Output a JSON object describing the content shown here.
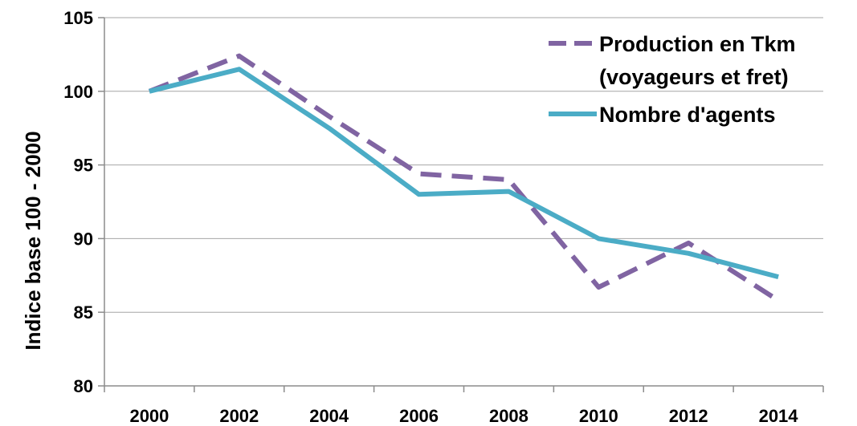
{
  "chart_data": {
    "type": "line",
    "title": "",
    "xlabel": "",
    "ylabel": "Indice base 100 - 2000",
    "x": [
      2000,
      2002,
      2004,
      2006,
      2008,
      2010,
      2012,
      2014
    ],
    "x_tick_labels": [
      "2000",
      "2002",
      "2004",
      "2006",
      "2008",
      "2010",
      "2012",
      "2014"
    ],
    "y_tick_labels": [
      "80",
      "85",
      "90",
      "95",
      "100",
      "105"
    ],
    "ylim": [
      80,
      105
    ],
    "grid": "horizontal",
    "legend_position": "top-right",
    "series": [
      {
        "name_lines": [
          "Production en Tkm",
          "(voyageurs et fret)"
        ],
        "color": "#8064a2",
        "style": "dashed",
        "values": [
          100,
          102.4,
          98.3,
          94.4,
          94.0,
          86.7,
          89.7,
          85.8
        ]
      },
      {
        "name_lines": [
          "Nombre d'agents"
        ],
        "color": "#4bacc6",
        "style": "solid",
        "values": [
          100,
          101.5,
          97.5,
          93.0,
          93.2,
          90.0,
          89.0,
          87.4
        ]
      }
    ]
  }
}
